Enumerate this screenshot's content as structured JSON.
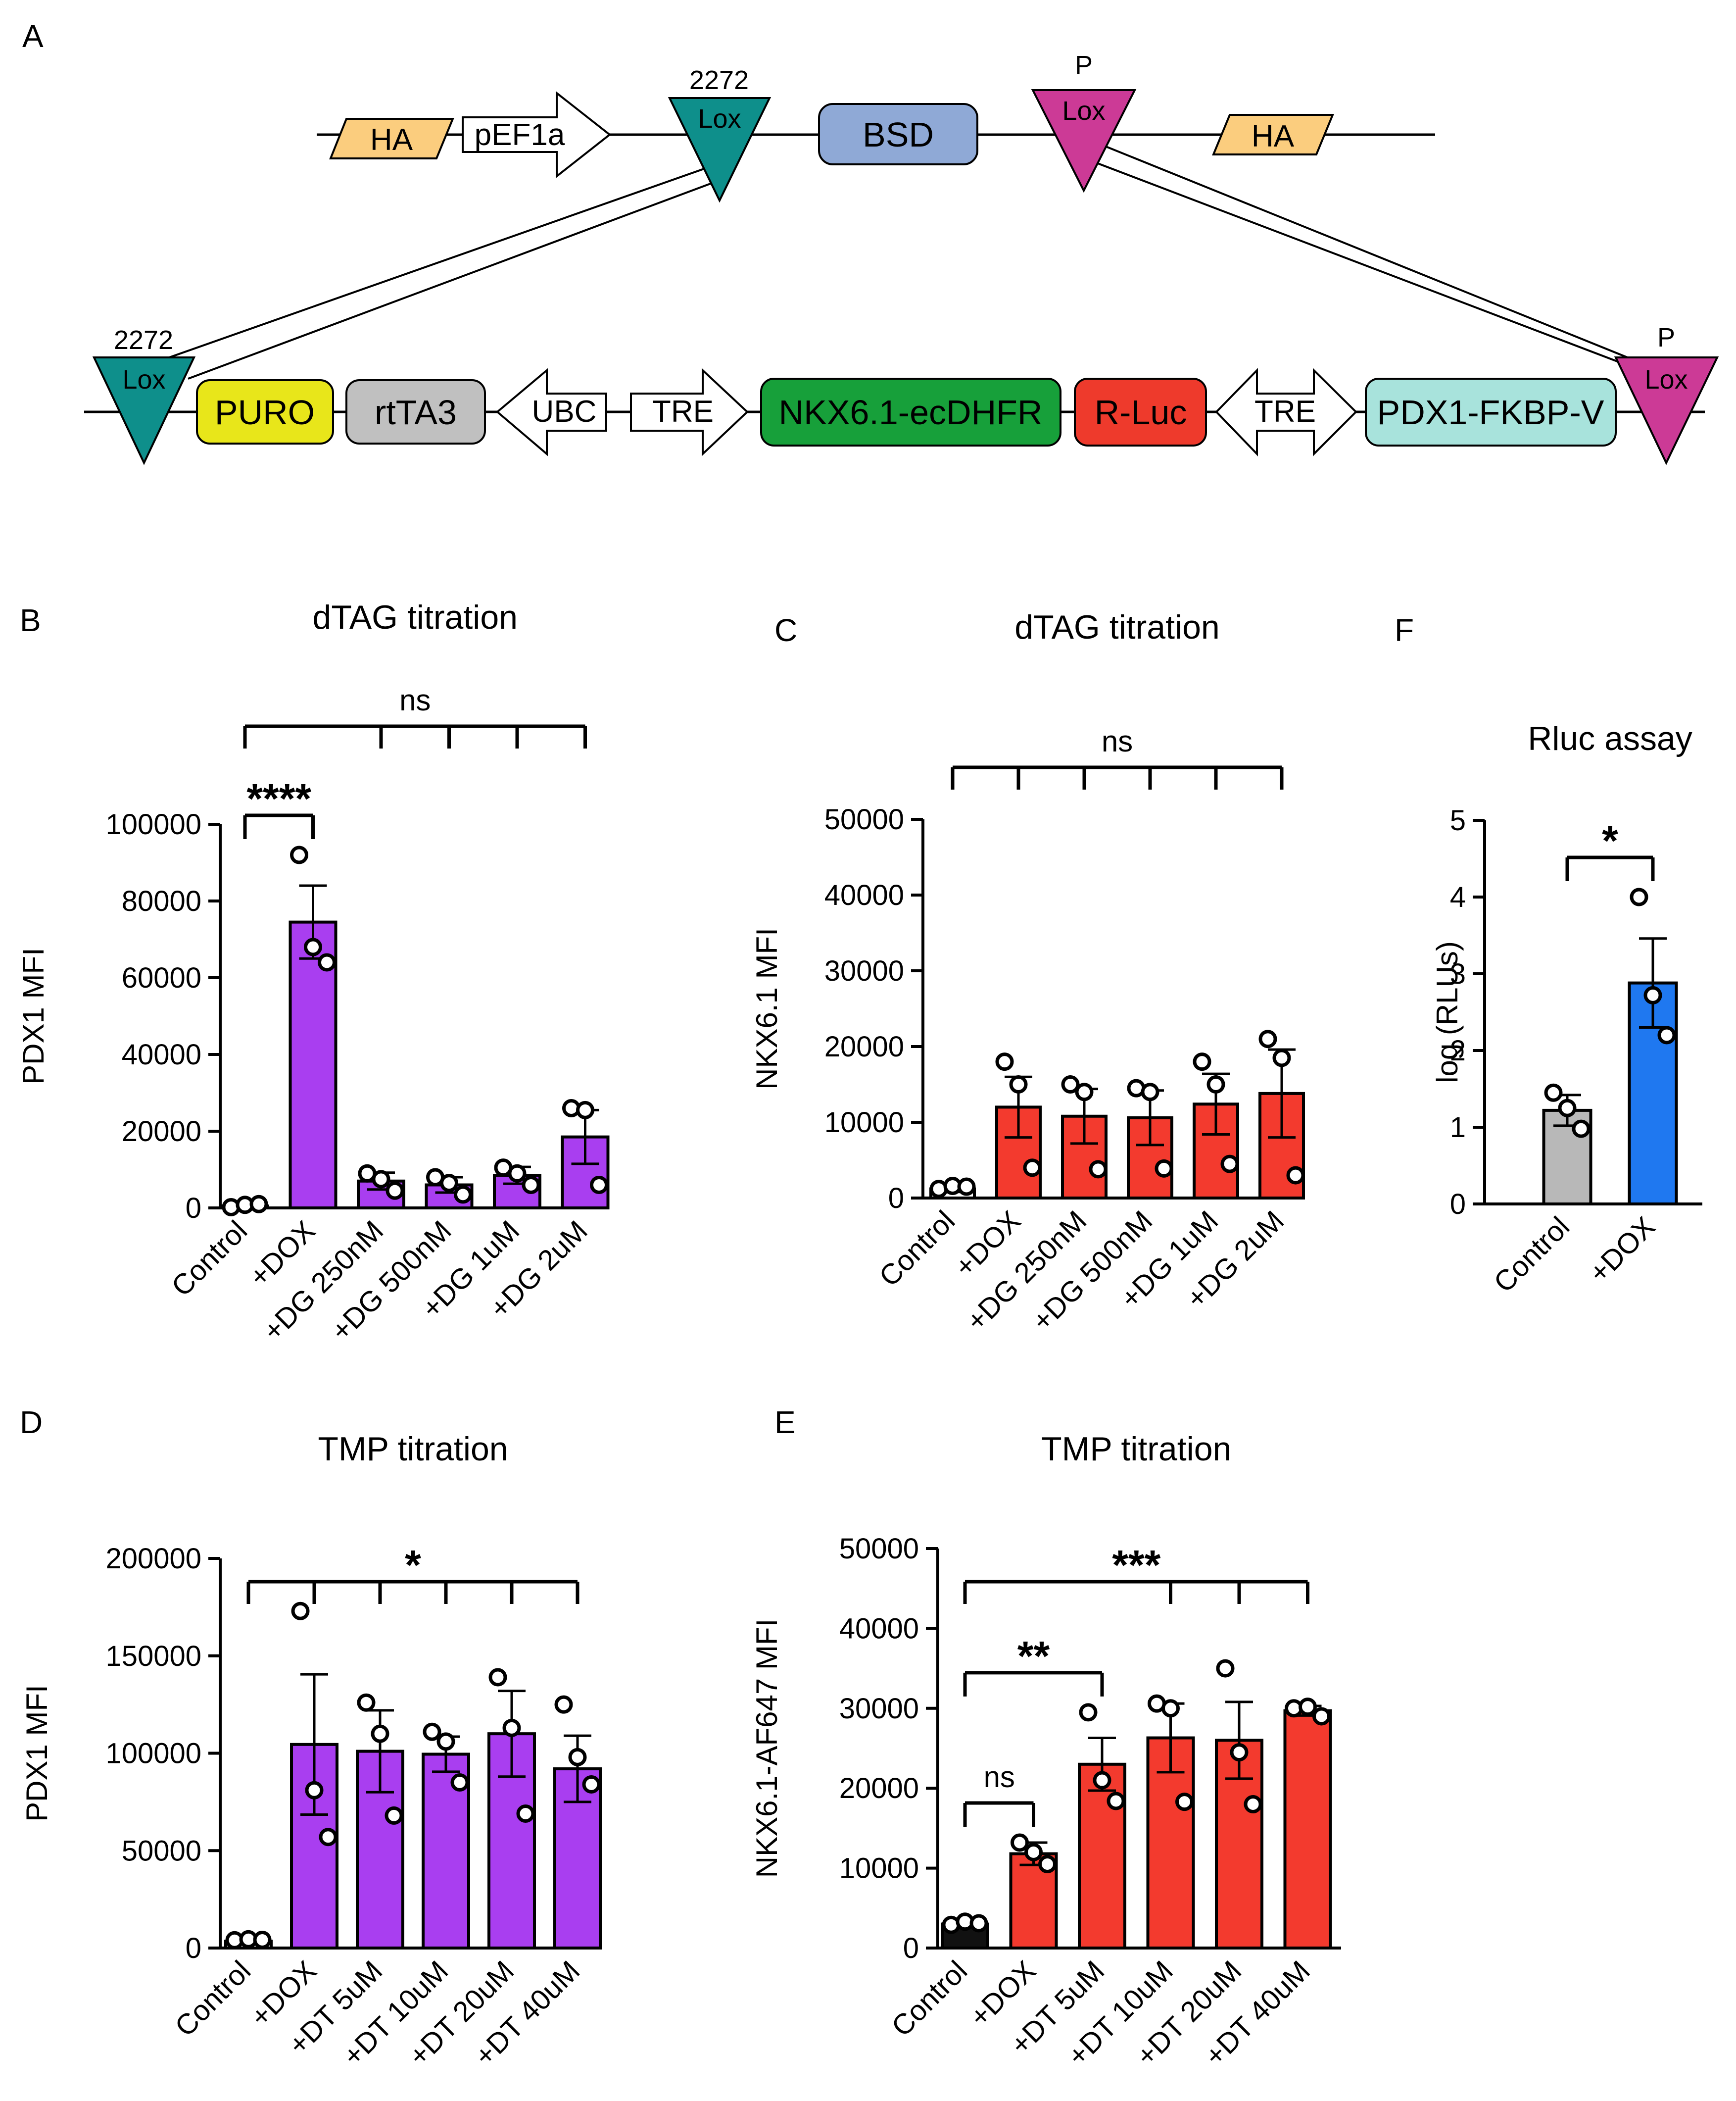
{
  "panel_letters": {
    "A": "A",
    "B": "B",
    "C": "C",
    "D": "D",
    "E": "E",
    "F": "F"
  },
  "construct": {
    "top_row": {
      "ha_left": "HA",
      "promoter": "pEF1a",
      "lox2272_num": "2272",
      "lox2272_label": "Lox",
      "bsd": "BSD",
      "loxp_num": "P",
      "loxp_label": "Lox",
      "ha_right": "HA"
    },
    "bottom_row": {
      "lox2272_num": "2272",
      "lox2272_label": "Lox",
      "puro": "PURO",
      "rtta3": "rtTA3",
      "ubc": "UBC",
      "tre1": "TRE",
      "nkx": "NKX6.1-ecDHFR",
      "rluc": "R-Luc",
      "tre2": "TRE",
      "pdx": "PDX1-FKBP-V",
      "loxp_num": "P",
      "loxp_label": "Lox"
    },
    "colors": {
      "ha": "#fbcd7e",
      "lox2272": "#0e8f8b",
      "loxp": "#cc3a96",
      "bsd": "#8fa9d6",
      "puro": "#e8e61a",
      "rtta3": "#c0c0c0",
      "nkx": "#17a03a",
      "rluc": "#ee3a2c",
      "pdx": "#a8e3dc"
    }
  },
  "chart_data": [
    {
      "id": "B",
      "type": "bar",
      "title": "dTAG titration",
      "ylabel": "PDX1 MFI",
      "xlabel": "",
      "ylim": [
        0,
        100000
      ],
      "yticks": [
        0,
        20000,
        40000,
        60000,
        80000,
        100000
      ],
      "categories": [
        "Control",
        "+DOX",
        "+DG 250nM",
        "+DG 500nM",
        "+DG 1uM",
        "+DG 2uM"
      ],
      "values": [
        500,
        74500,
        7000,
        6000,
        8500,
        18500
      ],
      "sem": [
        300,
        9500,
        2200,
        2000,
        2200,
        7000
      ],
      "bar_colors": [
        "#ffffff",
        "#a93ef0",
        "#a93ef0",
        "#a93ef0",
        "#a93ef0",
        "#a93ef0"
      ],
      "points": [
        [
          200,
          800,
          1000
        ],
        [
          92000,
          68000,
          64000
        ],
        [
          9000,
          7500,
          4500
        ],
        [
          8000,
          6500,
          3500
        ],
        [
          10500,
          9000,
          6000
        ],
        [
          26000,
          25500,
          6000
        ]
      ],
      "significance": [
        {
          "label": "ns",
          "type": "multi",
          "from": 0,
          "to": [
            2,
            3,
            4,
            5
          ]
        },
        {
          "label": "****",
          "type": "pair",
          "from": 0,
          "to": [
            1
          ]
        }
      ]
    },
    {
      "id": "C",
      "type": "bar",
      "title": "dTAG titration",
      "ylabel": "NKX6.1 MFI",
      "xlabel": "",
      "ylim": [
        0,
        50000
      ],
      "yticks": [
        0,
        10000,
        20000,
        30000,
        40000,
        50000
      ],
      "categories": [
        "Control",
        "+DOX",
        "+DG 250nM",
        "+DG 500nM",
        "+DG 1uM",
        "+DG 2uM"
      ],
      "values": [
        1200,
        12000,
        10800,
        10600,
        12400,
        13800
      ],
      "sem": [
        400,
        4000,
        3600,
        3600,
        4000,
        5800
      ],
      "bar_colors": [
        "#ffffff",
        "#f33a2e",
        "#f33a2e",
        "#f33a2e",
        "#f33a2e",
        "#f33a2e"
      ],
      "points": [
        [
          1200,
          1600,
          1500
        ],
        [
          18000,
          15000,
          4000
        ],
        [
          15000,
          14000,
          3800
        ],
        [
          14500,
          14000,
          3900
        ],
        [
          18000,
          15000,
          4500
        ],
        [
          21000,
          18500,
          3000
        ]
      ],
      "significance": [
        {
          "label": "ns",
          "type": "multi",
          "from": 0,
          "to": [
            1,
            2,
            3,
            4,
            5
          ]
        }
      ]
    },
    {
      "id": "F",
      "type": "bar",
      "title": "Rluc assay",
      "ylabel": "log (RLUs)",
      "xlabel": "",
      "ylim": [
        0,
        5
      ],
      "yticks": [
        0,
        1,
        2,
        3,
        4,
        5
      ],
      "categories": [
        "Control",
        "+DOX"
      ],
      "values": [
        1.22,
        2.88
      ],
      "sem": [
        0.2,
        0.58
      ],
      "bar_colors": [
        "#b8b8b8",
        "#1f78f0"
      ],
      "points": [
        [
          1.45,
          1.25,
          0.98
        ],
        [
          4.0,
          2.72,
          2.2
        ]
      ],
      "significance": [
        {
          "label": "*",
          "type": "pair",
          "from": 0,
          "to": [
            1
          ]
        }
      ]
    },
    {
      "id": "D",
      "type": "bar",
      "title": "TMP titration",
      "ylabel": "PDX1 MFI",
      "xlabel": "",
      "ylim": [
        0,
        200000
      ],
      "yticks": [
        0,
        50000,
        100000,
        150000,
        200000
      ],
      "categories": [
        "Control",
        "+DOX",
        "+DT 5uM",
        "+DT 10uM",
        "+DT 20uM",
        "+DT 40uM"
      ],
      "values": [
        3500,
        104500,
        101000,
        99500,
        110000,
        92000
      ],
      "sem": [
        800,
        36000,
        21000,
        9000,
        22000,
        17000
      ],
      "bar_colors": [
        "#ffffff",
        "#a93ef0",
        "#a93ef0",
        "#a93ef0",
        "#a93ef0",
        "#a93ef0"
      ],
      "points": [
        [
          4000,
          4500,
          4200
        ],
        [
          173000,
          81000,
          57000
        ],
        [
          126000,
          110000,
          68000
        ],
        [
          111000,
          106000,
          85000
        ],
        [
          139000,
          113000,
          69000
        ],
        [
          125000,
          98000,
          84000
        ]
      ],
      "significance": [
        {
          "label": "*",
          "type": "multi",
          "from": 0,
          "to": [
            1,
            2,
            3,
            4,
            5
          ]
        }
      ]
    },
    {
      "id": "E",
      "type": "bar",
      "title": "TMP titration",
      "ylabel": "NKX6.1-AF647 MFI",
      "xlabel": "",
      "ylim": [
        0,
        50000
      ],
      "yticks": [
        0,
        10000,
        20000,
        30000,
        40000,
        50000
      ],
      "categories": [
        "Control",
        "+DOX",
        "+DT 5uM",
        "+DT 10uM",
        "+DT 20uM",
        "+DT 40uM"
      ],
      "values": [
        3000,
        11800,
        23000,
        26300,
        26000,
        29700
      ],
      "sem": [
        300,
        1400,
        3300,
        4300,
        4800,
        600
      ],
      "bar_colors": [
        "#111111",
        "#f33a2e",
        "#f33a2e",
        "#f33a2e",
        "#f33a2e",
        "#f33a2e"
      ],
      "points": [
        [
          2900,
          3300,
          3100
        ],
        [
          13200,
          12000,
          10500
        ],
        [
          29500,
          21000,
          18400
        ],
        [
          30600,
          30000,
          18300
        ],
        [
          35000,
          24500,
          18000
        ],
        [
          30000,
          30200,
          29000
        ]
      ],
      "significance": [
        {
          "label": "***",
          "type": "multi",
          "from": 0,
          "to": [
            3,
            4,
            5
          ]
        },
        {
          "label": "**",
          "type": "pair",
          "from": 0,
          "to": [
            2
          ]
        },
        {
          "label": "ns",
          "type": "pair",
          "from": 0,
          "to": [
            1
          ]
        }
      ]
    }
  ]
}
